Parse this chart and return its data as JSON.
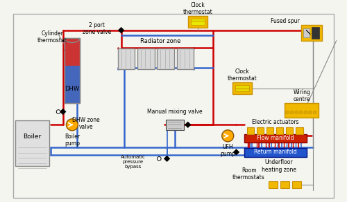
{
  "bg_color": "#f5f5f0",
  "pipe_hot_color": "#cc0000",
  "pipe_cold_color": "#3366cc",
  "pipe_lw": 1.8,
  "yellow": "#f0b800",
  "yellow_dark": "#c89000",
  "red_manifold": "#cc2200",
  "blue_manifold": "#2255cc",
  "gray_light": "#d8d8d8",
  "gray_border": "#888888",
  "wiring_color": "#888888",
  "labels": {
    "cylinder_thermostat": "Cylinder\nthermostat",
    "dhw": "DHW",
    "dhw_zone_valve": "DHW zone\nvalve",
    "boiler": "Boiler",
    "boiler_pump": "Boiler\npump",
    "two_port": "2 port\nzone valve",
    "radiator_zone": "Radiator zone",
    "clock_thermostat_top": "Clock\nthermostat",
    "clock_thermostat_mid": "Clock\nthermostat",
    "fused_spur": "Fused spur",
    "wiring_centre": "Wiring\ncentre",
    "manual_mixing_valve": "Manual mixing valve",
    "automatic_pressure_bypass": "Automatic\npressure\nbypass",
    "electric_actuators": "Electric actuators",
    "ufh_pump": "UFH\npump",
    "flow_manifold": "Flow manifold",
    "return_manifold": "Return manifold",
    "underfloor_heating_zone": "Underfloor\nheating zone",
    "room_thermostats": "Room\nthermostats"
  }
}
